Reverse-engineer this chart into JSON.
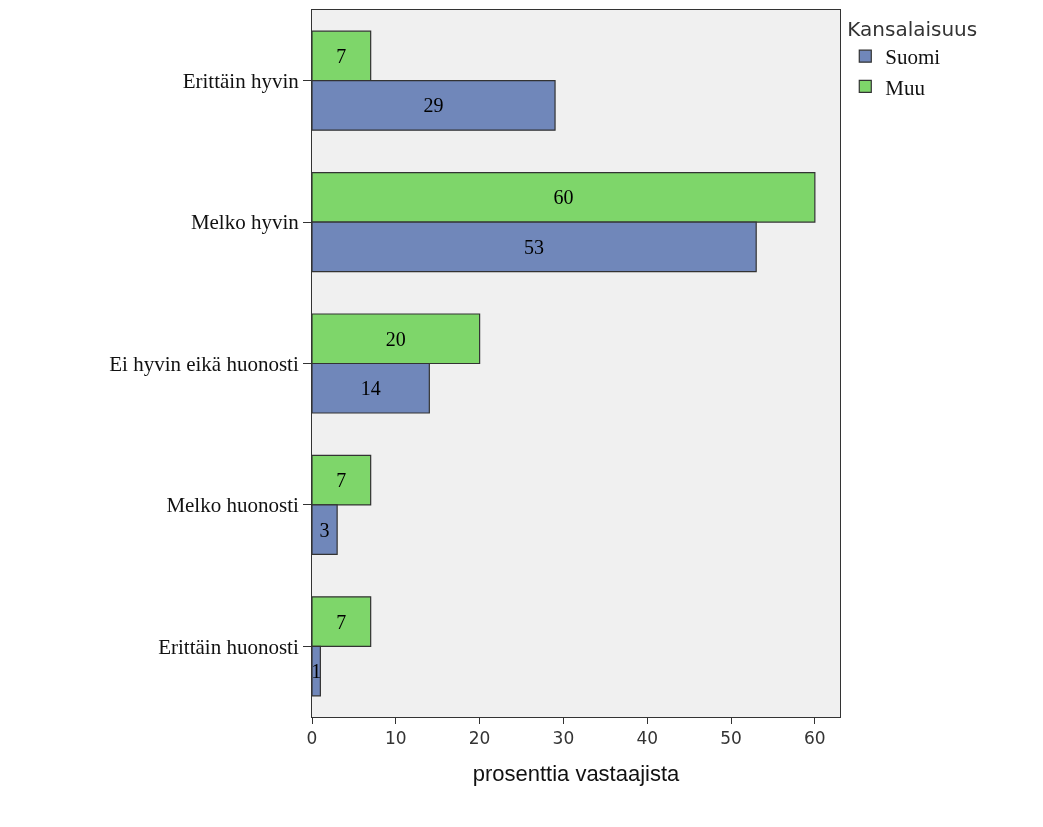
{
  "chart_data": {
    "type": "bar",
    "orientation": "horizontal",
    "xlabel": "prosenttia vastaajista",
    "legend_title": "Kansalaisuus",
    "categories": [
      "Erittäin hyvin",
      "Melko hyvin",
      "Ei hyvin eikä huonosti",
      "Melko huonosti",
      "Erittäin huonosti"
    ],
    "series": [
      {
        "name": "Suomi",
        "color": "#7087ba",
        "values": [
          29,
          53,
          14,
          3,
          1
        ]
      },
      {
        "name": "Muu",
        "color": "#7ed66a",
        "values": [
          7,
          60,
          20,
          7,
          7
        ]
      }
    ],
    "xlim": [
      0,
      63
    ],
    "xticks": [
      0,
      10,
      20,
      30,
      40,
      50,
      60
    ],
    "grid": false,
    "legend": "top right",
    "data_labels": true
  }
}
